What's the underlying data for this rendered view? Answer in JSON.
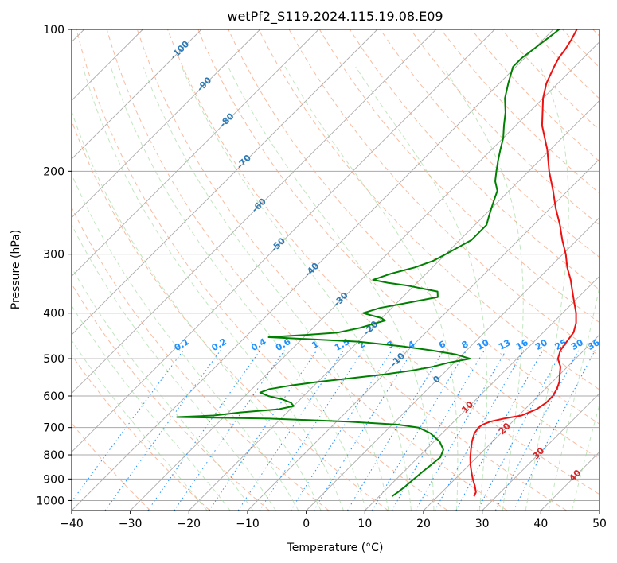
{
  "colors": {
    "temperature": "#ee1111",
    "dewpoint": "#008000",
    "isotherm": "#aaaaaa",
    "isobar": "#aaaaaa",
    "dry_adiabat": "#f4a582",
    "moist_adiabat": "#99d594",
    "mixing_ratio": "#1e90ff",
    "isotherm_label": "#2c7bb6",
    "warm_isotherm_label": "#d62728",
    "mixing_ratio_label": "#1e90ff"
  },
  "chart_data": {
    "type": "line",
    "title": "wetPf2_S119.2024.115.19.08.E09",
    "xlabel": "Temperature (°C)",
    "ylabel": "Pressure (hPa)",
    "xlim": [
      -40,
      50
    ],
    "ylim": [
      1050,
      100
    ],
    "y_scale": "log",
    "grid": true,
    "skew": true,
    "xticks": [
      -40,
      -30,
      -20,
      -10,
      0,
      10,
      20,
      30,
      40,
      50
    ],
    "yticks": [
      100,
      200,
      300,
      400,
      500,
      600,
      700,
      800,
      900,
      1000
    ],
    "isotherm_labels": [
      -100,
      -90,
      -80,
      -70,
      -60,
      -50,
      -40,
      -30,
      -20,
      -10,
      0,
      10,
      20,
      30,
      40
    ],
    "mixing_ratio_labels": [
      "0.1",
      "0.2",
      "0.4",
      "0.6",
      "1",
      "1.5",
      "2",
      "3",
      "4",
      "6",
      "8",
      "10",
      "13",
      "16",
      "20",
      "25",
      "30",
      "36"
    ],
    "series": [
      {
        "key": "temperature",
        "pressure": [
          980,
          960,
          930,
          900,
          870,
          840,
          810,
          780,
          750,
          720,
          700,
          690,
          680,
          670,
          660,
          640,
          620,
          600,
          580,
          560,
          540,
          520,
          500,
          480,
          460,
          440,
          420,
          400,
          380,
          360,
          340,
          320,
          300,
          280,
          260,
          240,
          220,
          200,
          180,
          160,
          140,
          130,
          120,
          115,
          110,
          105,
          100
        ],
        "temperature": [
          26.2,
          25.8,
          24.5,
          23.0,
          21.6,
          20.2,
          18.9,
          17.7,
          16.5,
          15.5,
          15.2,
          15.4,
          16.2,
          18.0,
          20.5,
          22.0,
          22.5,
          22.5,
          22.0,
          21.2,
          20.0,
          18.8,
          17.0,
          16.0,
          15.6,
          15.2,
          14.0,
          12.3,
          10.2,
          8.0,
          5.7,
          3.0,
          0.5,
          -2.5,
          -5.5,
          -9.0,
          -12.5,
          -16.5,
          -20.5,
          -25.5,
          -30.0,
          -32.0,
          -33.5,
          -34.2,
          -34.6,
          -35.2,
          -36.0
        ]
      },
      {
        "key": "dewpoint",
        "pressure": [
          980,
          960,
          930,
          900,
          870,
          840,
          810,
          780,
          750,
          720,
          700,
          690,
          680,
          670,
          665,
          660,
          650,
          640,
          630,
          620,
          610,
          600,
          590,
          580,
          570,
          560,
          550,
          540,
          530,
          520,
          510,
          500,
          490,
          480,
          470,
          460,
          455,
          450,
          445,
          440,
          430,
          420,
          415,
          410,
          405,
          400,
          390,
          380,
          370,
          360,
          355,
          350,
          345,
          340,
          330,
          320,
          310,
          300,
          290,
          280,
          270,
          260,
          250,
          240,
          230,
          220,
          210,
          200,
          190,
          180,
          170,
          160,
          150,
          140,
          130,
          120,
          115,
          110,
          105,
          100
        ],
        "temperature": [
          12.2,
          12.5,
          12.8,
          13.0,
          13.2,
          13.5,
          13.8,
          13.0,
          11.0,
          8.0,
          5.0,
          1.0,
          -8.0,
          -22.0,
          -38.0,
          -32.0,
          -28.0,
          -22.0,
          -20.0,
          -21.0,
          -23.0,
          -26.0,
          -28.0,
          -27.0,
          -24.0,
          -20.0,
          -15.0,
          -10.0,
          -6.0,
          -3.0,
          -1.0,
          2.0,
          -1.0,
          -6.0,
          -12.0,
          -20.0,
          -28.0,
          -36.0,
          -30.0,
          -25.0,
          -22.0,
          -20.0,
          -19.0,
          -20.0,
          -22.0,
          -24.0,
          -22.0,
          -18.0,
          -14.0,
          -15.0,
          -18.0,
          -21.0,
          -25.0,
          -28.0,
          -26.0,
          -23.0,
          -21.0,
          -20.0,
          -19.0,
          -18.0,
          -18.0,
          -18.0,
          -19.0,
          -20.0,
          -21.0,
          -22.0,
          -24.0,
          -25.5,
          -27.0,
          -28.5,
          -30.0,
          -32.0,
          -34.0,
          -36.5,
          -38.5,
          -40.5,
          -40.5,
          -40.0,
          -39.5,
          -39.0
        ]
      }
    ]
  }
}
